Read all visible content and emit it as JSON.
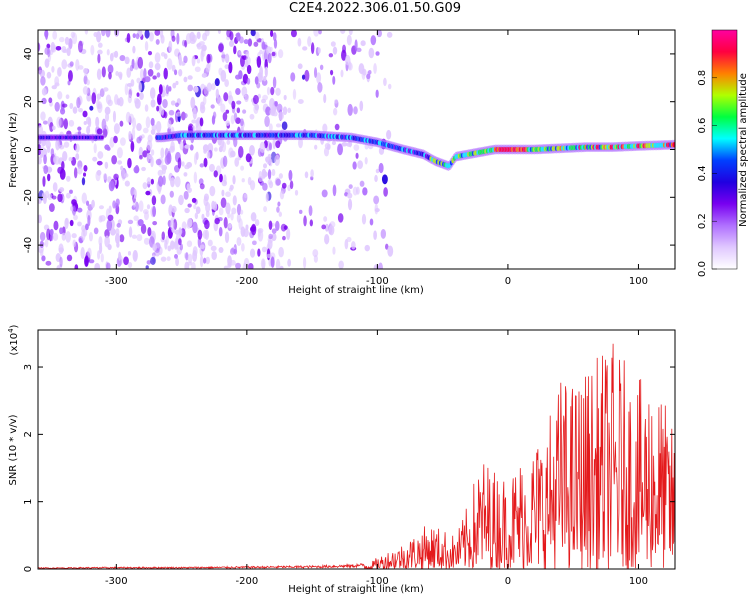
{
  "title": "C2E4.2022.306.01.50.G09",
  "chart_data": [
    {
      "type": "heatmap",
      "xlabel": "Height of straight line (km)",
      "ylabel": "Frequency (Hz)",
      "xlim": [
        -360,
        128
      ],
      "ylim": [
        -50,
        50
      ],
      "xticks": [
        -300,
        -200,
        -100,
        0,
        100
      ],
      "yticks": [
        -40,
        -20,
        0,
        20,
        40
      ],
      "grid": false,
      "colorbar": {
        "label": "Normalized spectral amplitude",
        "range": [
          0.0,
          1.0
        ],
        "ticks": [
          "0.0",
          "0.2",
          "0.4",
          "0.6",
          "0.8"
        ]
      },
      "ridge": {
        "x": [
          -360,
          -310,
          -270,
          -265,
          -250,
          -200,
          -150,
          -120,
          -100,
          -80,
          -65,
          -55,
          -45,
          -40,
          -30,
          -20,
          -10,
          0,
          10,
          20,
          40,
          60,
          80,
          100,
          128
        ],
        "freq": [
          5,
          5,
          5,
          5,
          6,
          6,
          6,
          5,
          3,
          0,
          -2,
          -5,
          -7,
          -3,
          -2,
          -1,
          0,
          0,
          0,
          0,
          0.5,
          1,
          1,
          1.5,
          2
        ]
      },
      "cmap_colors": [
        "#ffffff",
        "#e0c8ff",
        "#b070ff",
        "#7800f0",
        "#2000e0",
        "#0040ff",
        "#00ffff",
        "#00ff40",
        "#b0ff00",
        "#ff8000",
        "#ff0040",
        "#ff00a0"
      ]
    },
    {
      "type": "line",
      "xlabel": "Height of straight line (km)",
      "ylabel": "SNR (10 * v/v)",
      "scale_label": "(x10",
      "scale_exponent": "4",
      "xlim": [
        -360,
        128
      ],
      "ylim": [
        0,
        3.55
      ],
      "xticks": [
        -300,
        -200,
        -100,
        0,
        100
      ],
      "yticks": [
        0,
        1,
        2,
        3
      ],
      "grid": false,
      "color": "#e41a1c",
      "envelope": {
        "x": [
          -360,
          -300,
          -250,
          -200,
          -150,
          -120,
          -105,
          -100,
          -90,
          -80,
          -70,
          -60,
          -50,
          -40,
          -30,
          -25,
          -20,
          -10,
          0,
          10,
          20,
          30,
          40,
          50,
          60,
          70,
          80,
          90,
          100,
          110,
          120,
          128
        ],
        "y": [
          0.02,
          0.03,
          0.03,
          0.04,
          0.05,
          0.07,
          0.1,
          0.18,
          0.3,
          0.4,
          0.55,
          0.7,
          0.6,
          0.5,
          1.0,
          1.4,
          1.7,
          1.5,
          1.4,
          1.7,
          1.9,
          2.2,
          2.9,
          2.8,
          3.0,
          3.2,
          3.4,
          3.1,
          2.8,
          3.0,
          2.5,
          2.0
        ]
      }
    }
  ]
}
